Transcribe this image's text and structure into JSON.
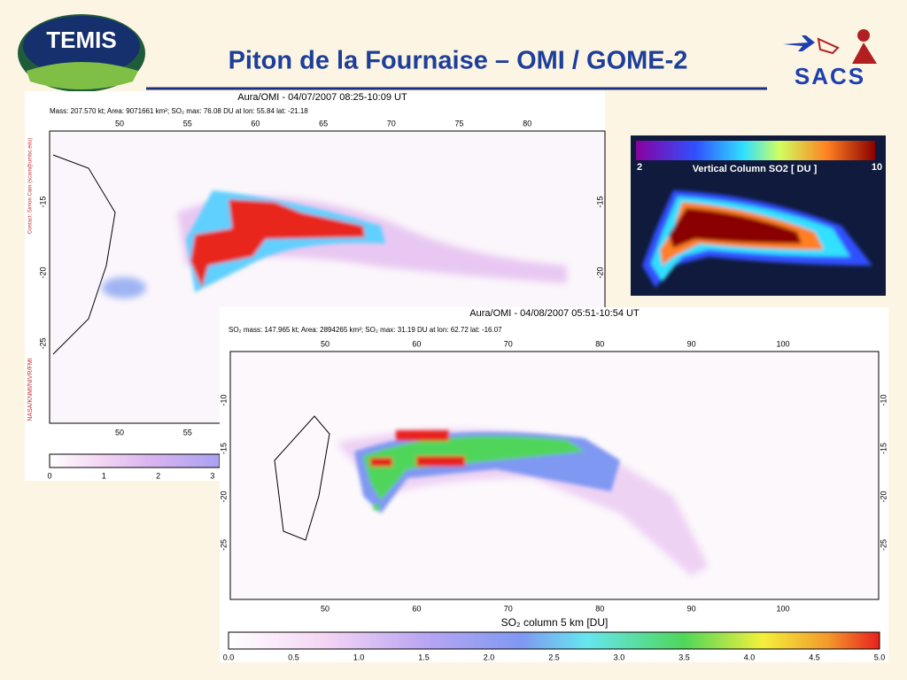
{
  "header": {
    "title": "Piton de la Fournaise – OMI / GOME-2",
    "logo_left": "TEMIS",
    "logo_right": "SACS"
  },
  "map1": {
    "title": "Aura/OMI - 04/07/2007 08:25-10:09 UT",
    "info": "Mass: 207.570 kt; Area: 9071661 km²; SO₂ max: 76.08 DU at lon: 55.84 lat: -21.18",
    "credit_left": "Contact: Simon Carn (scarn@umbc.edu)",
    "credit_bottom": "NASA/KNMI/NIVR/FMI",
    "x_ticks_top": [
      "50",
      "55",
      "60",
      "65",
      "70",
      "75",
      "80"
    ],
    "x_ticks_bottom": [
      "50",
      "55"
    ],
    "y_ticks_left": [
      "-15",
      "-20",
      "-25"
    ],
    "y_ticks_right": [
      "-15",
      "-20"
    ],
    "colorbar_ticks": [
      "0",
      "1",
      "2",
      "3"
    ]
  },
  "inset": {
    "min": "2",
    "label": "Vertical Column SO2 [ DU ]",
    "max": "10"
  },
  "map2": {
    "title": "Aura/OMI - 04/08/2007 05:51-10:54 UT",
    "info": "SO₂ mass: 147.965 kt; Area: 2894265 km²; SO₂ max: 31.19 DU at lon: 62.72 lat: -16.07",
    "x_ticks": [
      "50",
      "60",
      "70",
      "80",
      "90",
      "100"
    ],
    "y_ticks": [
      "-10",
      "-15",
      "-20",
      "-25"
    ],
    "colorbar_label": "SO₂ column 5 km [DU]",
    "colorbar_ticks": [
      "0.0",
      "0.5",
      "1.0",
      "1.5",
      "2.0",
      "2.5",
      "3.0",
      "3.5",
      "4.0",
      "4.5",
      "5.0"
    ]
  }
}
